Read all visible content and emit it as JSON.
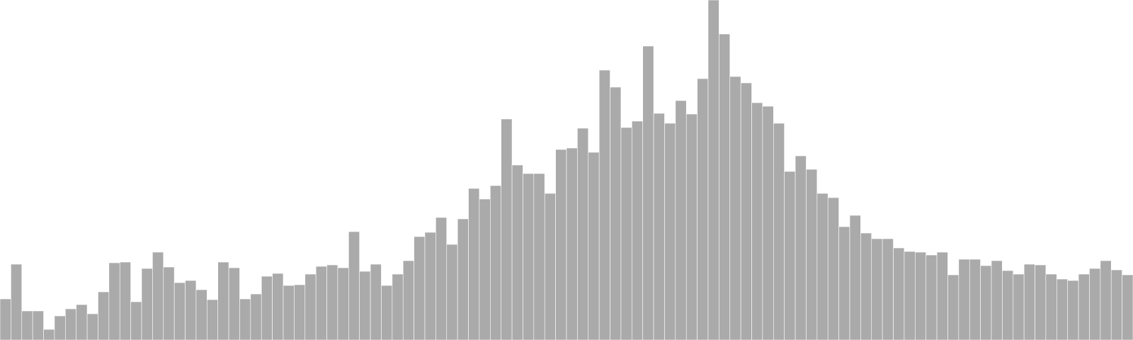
{
  "chart_data": {
    "type": "bar",
    "title": "",
    "xlabel": "",
    "ylabel": "",
    "grid": false,
    "legend": "none",
    "ylim": [
      0,
      480
    ],
    "bar_color": "#aaaaaa",
    "edge_color": "#ffffff",
    "values": [
      58,
      107,
      41,
      41,
      15,
      34,
      44,
      50,
      37,
      68,
      109,
      110,
      54,
      101,
      124,
      103,
      81,
      84,
      71,
      57,
      110,
      102,
      58,
      65,
      90,
      94,
      77,
      78,
      93,
      104,
      106,
      102,
      153,
      97,
      107,
      77,
      93,
      112,
      146,
      152,
      173,
      135,
      171,
      214,
      199,
      218,
      312,
      247,
      235,
      235,
      207,
      269,
      271,
      299,
      265,
      381,
      357,
      300,
      309,
      415,
      320,
      306,
      338,
      319,
      369,
      480,
      432,
      372,
      363,
      335,
      330,
      306,
      238,
      260,
      241,
      207,
      201,
      160,
      176,
      151,
      143,
      143,
      130,
      125,
      124,
      120,
      124,
      92,
      114,
      114,
      105,
      112,
      98,
      93,
      107,
      106,
      93,
      86,
      84,
      93,
      101,
      112,
      99,
      92
    ]
  }
}
